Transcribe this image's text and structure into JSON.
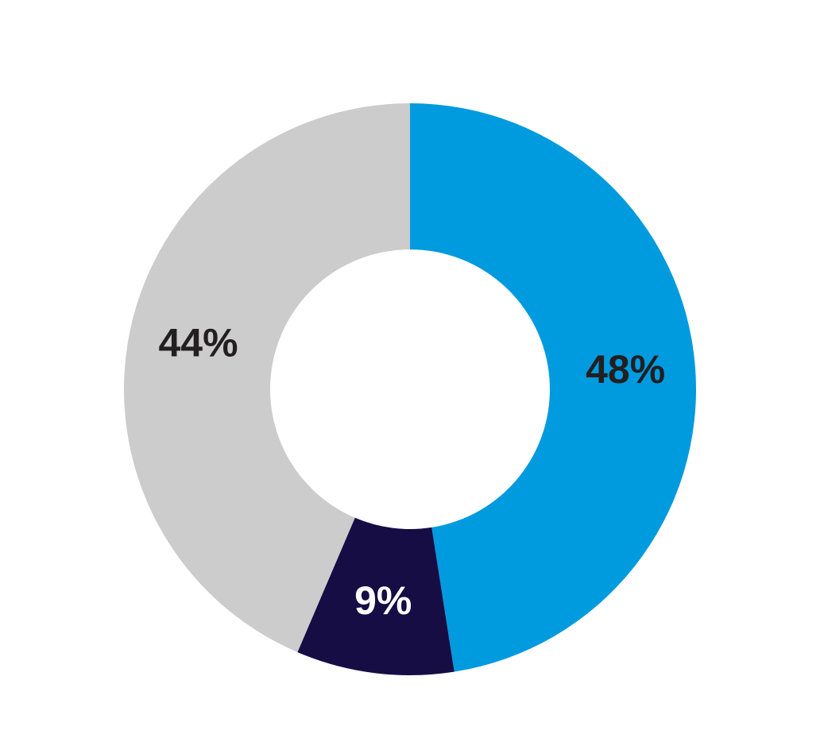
{
  "chart_data": {
    "type": "donut",
    "categories": [
      null,
      null,
      null
    ],
    "values": [
      48,
      9,
      44
    ],
    "value_labels": [
      "48%",
      "9%",
      "44%"
    ],
    "colors": [
      "#009ade",
      "#160d45",
      "#cccccc"
    ],
    "label_colors": [
      "#231f20",
      "#ffffff",
      "#231f20"
    ]
  }
}
